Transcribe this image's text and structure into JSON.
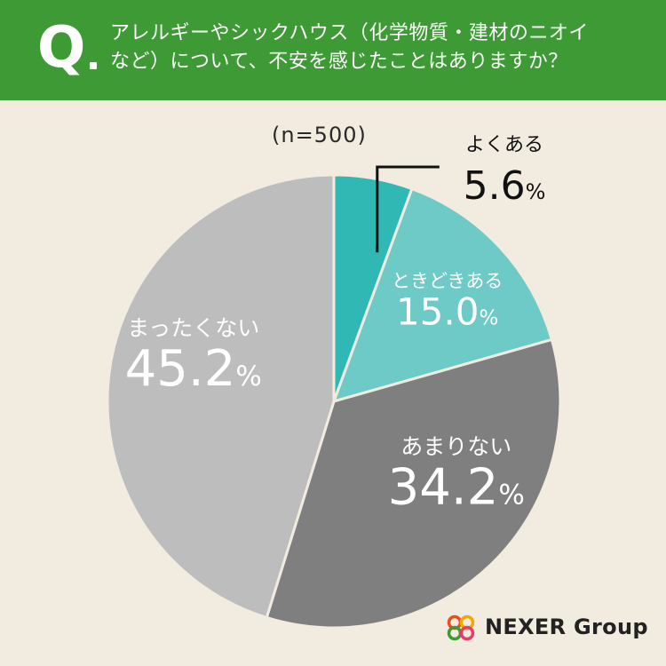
{
  "header": {
    "q_letter": "Q",
    "question_line1": "アレルギーやシックハウス（化学物質・建材のニオイ",
    "question_line2": "など）について、不安を感じたことはありますか？"
  },
  "sample_size": "(n=500)",
  "brand": {
    "logo_text": "NEXER Group"
  },
  "colors": {
    "header_green": "#3e9a34",
    "background": "#f2ebe0",
    "slice_1": "#2fb8b4",
    "slice_2": "#6dcac6",
    "slice_3": "#7f7f7f",
    "slice_4": "#bdbdbd",
    "divider": "#f2ebe0"
  },
  "chart_data": {
    "type": "pie",
    "title": "アレルギーやシックハウス（化学物質・建材のニオイなど）について、不安を感じたことはありますか？",
    "n": 500,
    "unit": "%",
    "start": "12 o'clock, clockwise",
    "categories": [
      "よくある",
      "ときどきある",
      "あまりない",
      "まったくない"
    ],
    "values": [
      5.6,
      15.0,
      34.2,
      45.2
    ]
  }
}
